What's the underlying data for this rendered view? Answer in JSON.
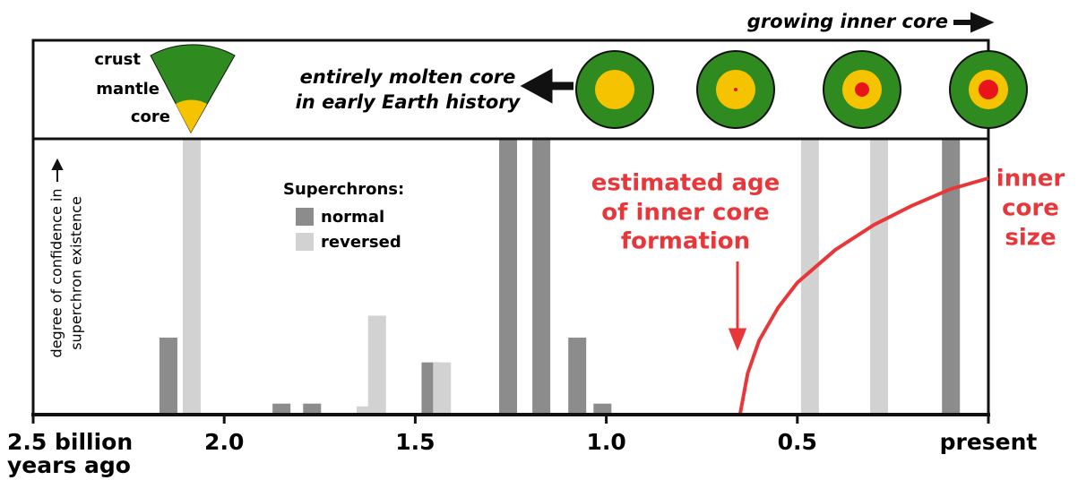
{
  "chart_data": {
    "type": "bar",
    "header": {
      "growing": "growing inner core",
      "wedge_labels": [
        "crust",
        "mantle",
        "core"
      ],
      "molten": [
        "entirely molten core",
        "in early Earth history"
      ]
    },
    "ylabel": [
      "degree of confidence in",
      "superchron existence"
    ],
    "legend_title": "Superchrons:",
    "xlim": [
      2.5,
      0
    ],
    "ylim": [
      0,
      100
    ],
    "xticks": [
      {
        "value": 2.5,
        "label": [
          "2.5 billion",
          "years ago"
        ]
      },
      {
        "value": 2,
        "label": "2.0"
      },
      {
        "value": 1.5,
        "label": "1.5"
      },
      {
        "value": 1,
        "label": "1.0"
      },
      {
        "value": 0.5,
        "label": "0.5"
      },
      {
        "value": 0,
        "label": "present"
      }
    ],
    "series": [
      {
        "name": "normal",
        "color": "#8c8c8c",
        "x": [
          2.146,
          1.85,
          1.77,
          1.46,
          1.257,
          1.17,
          1.076,
          1.01,
          0.098
        ],
        "values": [
          28,
          4,
          4,
          19,
          100,
          100,
          28,
          4,
          100
        ]
      },
      {
        "name": "reversed",
        "color": "#d2d2d2",
        "x": [
          2.085,
          1.63,
          1.6,
          1.43,
          0.467,
          0.286
        ],
        "values": [
          100,
          3,
          36,
          19,
          100,
          100
        ]
      }
    ],
    "curve": {
      "label": [
        "inner",
        "core",
        "size"
      ],
      "color": "#e8373a",
      "x": [
        0.65,
        0.63,
        0.6,
        0.55,
        0.5,
        0.4,
        0.3,
        0.2,
        0.1,
        0
      ],
      "values": [
        0,
        15,
        27,
        39,
        48,
        60,
        69,
        76,
        82,
        86
      ]
    },
    "annotation": [
      "estimated age",
      "of inner core",
      "formation"
    ]
  }
}
